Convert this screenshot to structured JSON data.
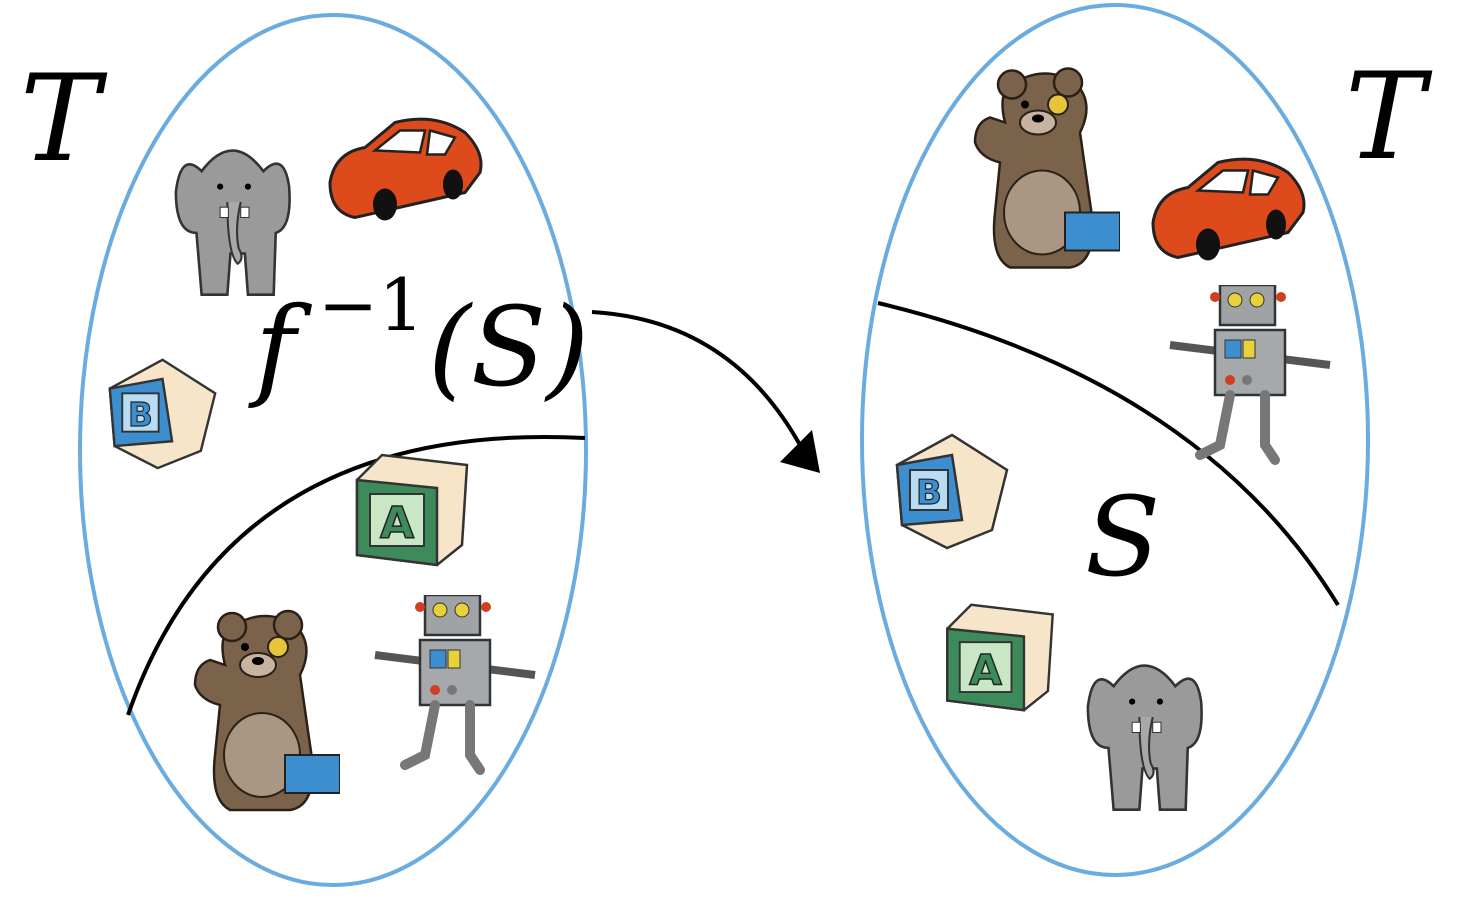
{
  "left_set": {
    "label": "T",
    "preimage_label": {
      "base": "f",
      "exponent": "−1",
      "argument": "(S)"
    }
  },
  "right_set": {
    "label": "T",
    "subset_label": "S"
  }
}
